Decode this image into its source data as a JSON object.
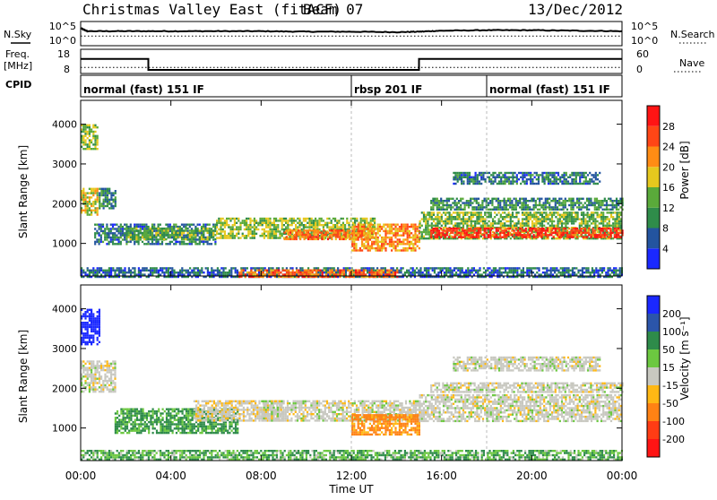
{
  "header": {
    "title": "Christmas Valley East (fitACF)",
    "beam": "Beam 07",
    "date": "13/Dec/2012"
  },
  "left_labels": {
    "nsky": "N.Sky",
    "freq": "Freq.",
    "mhz": "[MHz]",
    "cpid": "CPID"
  },
  "right_labels": {
    "nsearch": "N.Search",
    "nave": "Nave"
  },
  "noise_axis": {
    "left_ticks": [
      "10^5",
      "10^0"
    ],
    "right_ticks": [
      "10^5",
      "10^0"
    ]
  },
  "freq_axis": {
    "left_ticks": [
      "18",
      "8"
    ],
    "right_ticks": [
      "60",
      "0"
    ]
  },
  "cpid_segments": [
    {
      "label": "normal (fast) 151 IF",
      "start_h": 0,
      "end_h": 12
    },
    {
      "label": "rbsp 201 IF",
      "start_h": 12,
      "end_h": 18
    },
    {
      "label": "normal (fast) 151 IF",
      "start_h": 18,
      "end_h": 24
    }
  ],
  "time_axis": {
    "ticks": [
      "00:00",
      "04:00",
      "08:00",
      "12:00",
      "16:00",
      "20:00",
      "00:00"
    ],
    "label": "Time UT"
  },
  "range_axis": {
    "label": "Slant Range [km]",
    "ticks": [
      "1000",
      "2000",
      "3000",
      "4000"
    ]
  },
  "power_colorbar": {
    "label": "Power [dB]",
    "ticks": [
      "4",
      "8",
      "12",
      "16",
      "20",
      "24",
      "28"
    ],
    "colors": [
      "#1a28ff",
      "#23549f",
      "#2f8c4a",
      "#5aaa3a",
      "#e6c81e",
      "#ff8c14",
      "#ff4616",
      "#ff1414"
    ]
  },
  "velocity_colorbar": {
    "label": "Velocity [m s⁻¹]",
    "ticks": [
      "200",
      "100",
      "50",
      "15",
      "-15",
      "-50",
      "-100",
      "-200"
    ],
    "colors": [
      "#1a28ff",
      "#2b55aa",
      "#2e8b4a",
      "#6cc840",
      "#c8c8c0",
      "#ffb814",
      "#ff8214",
      "#ff3c14",
      "#ff1414"
    ]
  },
  "chart_data": [
    {
      "type": "line",
      "name": "noise",
      "series": [
        {
          "name": "N.Sky",
          "x_h": [
            0,
            0.3,
            2,
            4,
            6,
            8,
            10,
            12,
            14,
            15,
            16,
            18,
            20,
            22,
            24
          ],
          "y_log10": [
            3.6,
            3.0,
            3.0,
            3.0,
            3.0,
            3.0,
            2.9,
            2.9,
            2.8,
            2.9,
            3.1,
            3.2,
            3.2,
            3.1,
            3.0
          ]
        },
        {
          "name": "N.Search",
          "x_h": [
            0,
            24
          ],
          "y_log10": [
            2.0,
            2.0
          ]
        }
      ],
      "ylim_log10": [
        0,
        5
      ]
    },
    {
      "type": "line",
      "name": "frequency",
      "series": [
        {
          "name": "Freq.",
          "x_h": [
            0,
            3,
            3,
            15,
            15,
            24
          ],
          "y": [
            14,
            14,
            9.5,
            9.5,
            14,
            14
          ]
        },
        {
          "name": "Nave",
          "x_h": [
            0,
            24
          ],
          "y_right": [
            15,
            15
          ]
        }
      ],
      "ylim": [
        8,
        18
      ],
      "ylim_right": [
        0,
        60
      ]
    },
    {
      "type": "heatmap",
      "name": "power",
      "x_unit": "hours UT",
      "y_unit": "km",
      "xlim": [
        0,
        24
      ],
      "ylim": [
        180,
        4600
      ],
      "bands": [
        {
          "t0": 0.0,
          "t1": 0.7,
          "r0": 1700,
          "r1": 2400,
          "v": 18
        },
        {
          "t0": 0.0,
          "t1": 0.7,
          "r0": 3400,
          "r1": 4000,
          "v": 14
        },
        {
          "t0": 0.8,
          "t1": 1.5,
          "r0": 1900,
          "r1": 2400,
          "v": 10
        },
        {
          "t0": 0.6,
          "t1": 6.0,
          "r0": 1000,
          "r1": 1500,
          "v": 8
        },
        {
          "t0": 2.0,
          "t1": 6.0,
          "r0": 1100,
          "r1": 1400,
          "v": 13
        },
        {
          "t0": 6.0,
          "t1": 13.0,
          "r0": 1150,
          "r1": 1650,
          "v": 15
        },
        {
          "t0": 9.0,
          "t1": 12.5,
          "r0": 1100,
          "r1": 1350,
          "v": 24
        },
        {
          "t0": 12.0,
          "t1": 15.0,
          "r0": 850,
          "r1": 1500,
          "v": 22
        },
        {
          "t0": 15.0,
          "t1": 24.0,
          "r0": 1150,
          "r1": 1800,
          "v": 14
        },
        {
          "t0": 15.5,
          "t1": 24.0,
          "r0": 1150,
          "r1": 1400,
          "v": 28
        },
        {
          "t0": 15.5,
          "t1": 24.0,
          "r0": 1850,
          "r1": 2150,
          "v": 10
        },
        {
          "t0": 16.5,
          "t1": 23.0,
          "r0": 2500,
          "r1": 2800,
          "v": 8
        },
        {
          "t0": 0.0,
          "t1": 24.0,
          "r0": 180,
          "r1": 400,
          "v": 7
        },
        {
          "t0": 7.0,
          "t1": 14.0,
          "r0": 180,
          "r1": 350,
          "v": 24
        }
      ]
    },
    {
      "type": "heatmap",
      "name": "velocity",
      "x_unit": "hours UT",
      "y_unit": "km",
      "xlim": [
        0,
        24
      ],
      "ylim": [
        180,
        4600
      ],
      "bands": [
        {
          "t0": 0.0,
          "t1": 0.8,
          "r0": 3100,
          "r1": 4000,
          "v": 200
        },
        {
          "t0": 0.0,
          "t1": 1.5,
          "r0": 1900,
          "r1": 2700,
          "v": 0
        },
        {
          "t0": 1.5,
          "t1": 7.0,
          "r0": 900,
          "r1": 1500,
          "v": 40
        },
        {
          "t0": 5.0,
          "t1": 9.0,
          "r0": 1200,
          "r1": 1700,
          "v": -5
        },
        {
          "t0": 8.0,
          "t1": 15.0,
          "r0": 1200,
          "r1": 1700,
          "v": 0
        },
        {
          "t0": 12.0,
          "t1": 15.0,
          "r0": 850,
          "r1": 1350,
          "v": -40
        },
        {
          "t0": 15.0,
          "t1": 24.0,
          "r0": 1150,
          "r1": 1850,
          "v": 0
        },
        {
          "t0": 15.5,
          "t1": 24.0,
          "r0": 1900,
          "r1": 2150,
          "v": 0
        },
        {
          "t0": 16.5,
          "t1": 23.0,
          "r0": 2450,
          "r1": 2800,
          "v": 0
        },
        {
          "t0": 0.0,
          "t1": 24.0,
          "r0": 180,
          "r1": 450,
          "v": 30
        }
      ]
    }
  ]
}
